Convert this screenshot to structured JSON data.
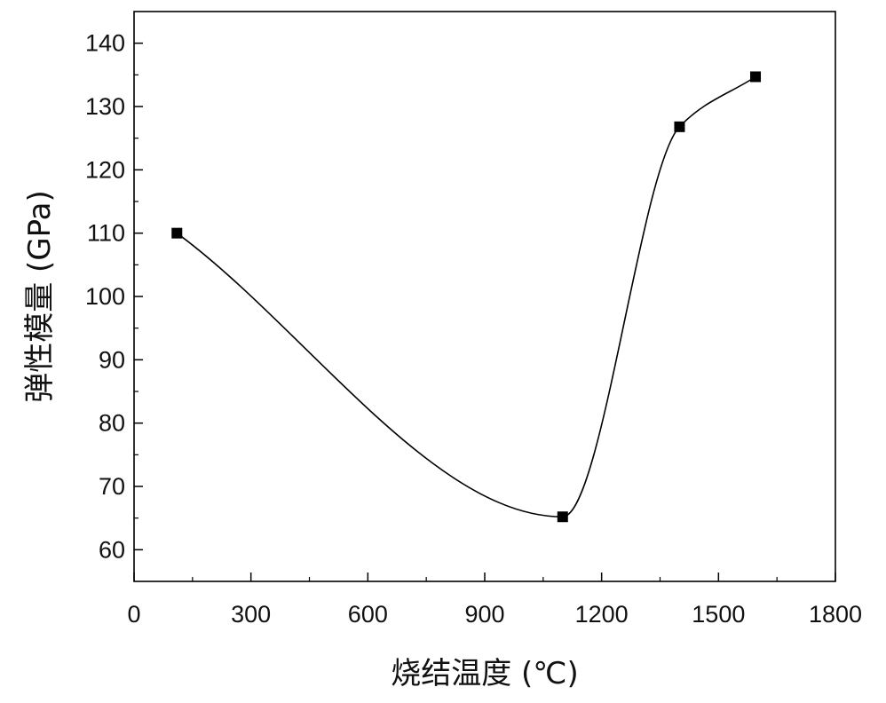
{
  "chart_data": {
    "type": "line",
    "title": "",
    "xlabel": "烧结温度 (℃)",
    "ylabel": "弹性模量 (GPa)",
    "xlim": [
      0,
      1800
    ],
    "ylim": [
      55,
      145
    ],
    "xticks": [
      0,
      300,
      600,
      900,
      1200,
      1500,
      1800
    ],
    "yticks": [
      60,
      70,
      80,
      90,
      100,
      110,
      120,
      130,
      140
    ],
    "grid": false,
    "legend": "none",
    "series": [
      {
        "x": [
          110,
          1100,
          1400,
          1595
        ],
        "y": [
          110,
          65.2,
          126.8,
          134.7
        ],
        "marker": "square",
        "line": "smooth",
        "color": "#000000"
      }
    ]
  }
}
